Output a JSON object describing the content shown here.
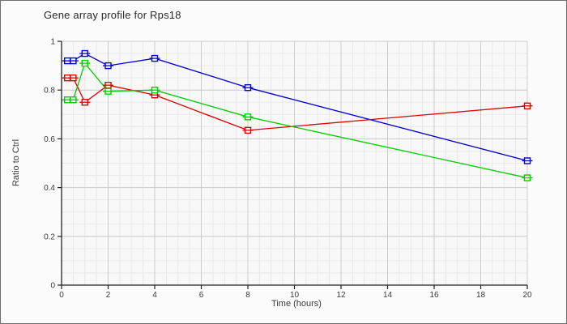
{
  "window": {
    "title": "Gene array profile for Rps18"
  },
  "chart_data": {
    "type": "line",
    "title": "Gene array profile for Rps18",
    "xlabel": "Time (hours)",
    "ylabel": "Ratio to Ctrl",
    "xlim": [
      0,
      20
    ],
    "ylim": [
      0,
      1
    ],
    "x_ticks": [
      0,
      2,
      4,
      6,
      8,
      10,
      12,
      14,
      16,
      18,
      20
    ],
    "y_ticks": [
      0,
      0.2,
      0.4,
      0.6,
      0.8,
      1
    ],
    "x_minor_step": 0.5,
    "y_minor_step": 0.05,
    "grid": "on",
    "legend": "none",
    "marker": "open-square-with-horizontal-error-bar",
    "x": [
      0.25,
      0.5,
      1,
      2,
      4,
      8,
      20
    ],
    "series": [
      {
        "name": "blue",
        "color": "#0000cc",
        "values": [
          0.92,
          0.92,
          0.95,
          0.9,
          0.93,
          0.81,
          0.51
        ]
      },
      {
        "name": "red",
        "color": "#dd0000",
        "values": [
          0.85,
          0.85,
          0.75,
          0.82,
          0.78,
          0.635,
          0.735
        ]
      },
      {
        "name": "green",
        "color": "#00cc00",
        "values": [
          0.76,
          0.76,
          0.91,
          0.795,
          0.8,
          0.69,
          0.44
        ]
      }
    ]
  },
  "colors": {
    "background": "#fbfbfb",
    "plot_background": "#f8f8f8",
    "grid_minor": "#e9e9e9",
    "grid_major": "#cccccc",
    "axis": "#222222",
    "tick_text": "#3a3a3a"
  }
}
